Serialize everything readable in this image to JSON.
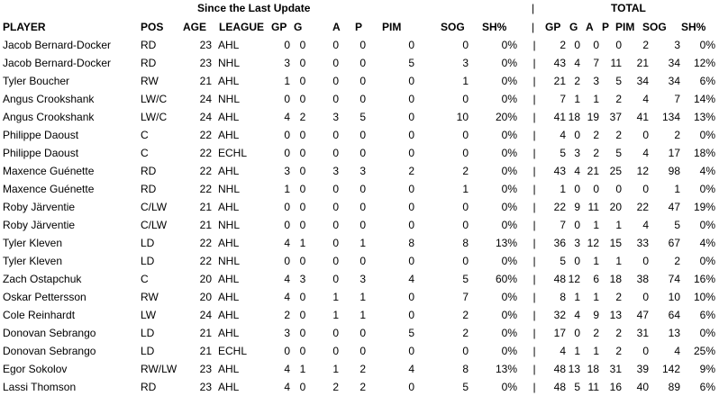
{
  "banners": {
    "since": "Since the Last Update",
    "sep": "|",
    "total": "TOTAL"
  },
  "headers": {
    "player": "PLAYER",
    "pos": "POS",
    "age": "AGE",
    "league": "LEAGUE",
    "s_gp": "GP",
    "s_g": "G",
    "s_a": "A",
    "s_p": "P",
    "s_pim": "PIM",
    "s_sog": "SOG",
    "s_shp": "SH%",
    "sep": "|",
    "t_gp": "GP",
    "t_g": "G",
    "t_a": "A",
    "t_p": "P",
    "t_pim": "PIM",
    "t_sog": "SOG",
    "t_shp": "SH%"
  },
  "rows": [
    {
      "player": "Jacob Bernard-Docker",
      "pos": "RD",
      "age": "23",
      "league": "AHL",
      "s_gp": "0",
      "s_g": "0",
      "s_a": "0",
      "s_p": "0",
      "s_pim": "0",
      "s_sog": "0",
      "s_shp": "0%",
      "sep": "|",
      "t_gp": "2",
      "t_g": "0",
      "t_a": "0",
      "t_p": "0",
      "t_pim": "2",
      "t_sog": "3",
      "t_shp": "0%"
    },
    {
      "player": "Jacob Bernard-Docker",
      "pos": "RD",
      "age": "23",
      "league": "NHL",
      "s_gp": "3",
      "s_g": "0",
      "s_a": "0",
      "s_p": "0",
      "s_pim": "5",
      "s_sog": "3",
      "s_shp": "0%",
      "sep": "|",
      "t_gp": "43",
      "t_g": "4",
      "t_a": "7",
      "t_p": "11",
      "t_pim": "21",
      "t_sog": "34",
      "t_shp": "12%"
    },
    {
      "player": "Tyler Boucher",
      "pos": "RW",
      "age": "21",
      "league": "AHL",
      "s_gp": "1",
      "s_g": "0",
      "s_a": "0",
      "s_p": "0",
      "s_pim": "0",
      "s_sog": "1",
      "s_shp": "0%",
      "sep": "|",
      "t_gp": "21",
      "t_g": "2",
      "t_a": "3",
      "t_p": "5",
      "t_pim": "34",
      "t_sog": "34",
      "t_shp": "6%"
    },
    {
      "player": "Angus Crookshank",
      "pos": "LW/C",
      "age": "24",
      "league": "NHL",
      "s_gp": "0",
      "s_g": "0",
      "s_a": "0",
      "s_p": "0",
      "s_pim": "0",
      "s_sog": "0",
      "s_shp": "0%",
      "sep": "|",
      "t_gp": "7",
      "t_g": "1",
      "t_a": "1",
      "t_p": "2",
      "t_pim": "4",
      "t_sog": "7",
      "t_shp": "14%"
    },
    {
      "player": "Angus Crookshank",
      "pos": "LW/C",
      "age": "24",
      "league": "AHL",
      "s_gp": "4",
      "s_g": "2",
      "s_a": "3",
      "s_p": "5",
      "s_pim": "0",
      "s_sog": "10",
      "s_shp": "20%",
      "sep": "|",
      "t_gp": "41",
      "t_g": "18",
      "t_a": "19",
      "t_p": "37",
      "t_pim": "41",
      "t_sog": "134",
      "t_shp": "13%"
    },
    {
      "player": "Philippe Daoust",
      "pos": "C",
      "age": "22",
      "league": "AHL",
      "s_gp": "0",
      "s_g": "0",
      "s_a": "0",
      "s_p": "0",
      "s_pim": "0",
      "s_sog": "0",
      "s_shp": "0%",
      "sep": "|",
      "t_gp": "4",
      "t_g": "0",
      "t_a": "2",
      "t_p": "2",
      "t_pim": "0",
      "t_sog": "2",
      "t_shp": "0%"
    },
    {
      "player": "Philippe Daoust",
      "pos": "C",
      "age": "22",
      "league": "ECHL",
      "s_gp": "0",
      "s_g": "0",
      "s_a": "0",
      "s_p": "0",
      "s_pim": "0",
      "s_sog": "0",
      "s_shp": "0%",
      "sep": "|",
      "t_gp": "5",
      "t_g": "3",
      "t_a": "2",
      "t_p": "5",
      "t_pim": "4",
      "t_sog": "17",
      "t_shp": "18%"
    },
    {
      "player": "Maxence Guénette",
      "pos": "RD",
      "age": "22",
      "league": "AHL",
      "s_gp": "3",
      "s_g": "0",
      "s_a": "3",
      "s_p": "3",
      "s_pim": "2",
      "s_sog": "2",
      "s_shp": "0%",
      "sep": "|",
      "t_gp": "43",
      "t_g": "4",
      "t_a": "21",
      "t_p": "25",
      "t_pim": "12",
      "t_sog": "98",
      "t_shp": "4%"
    },
    {
      "player": "Maxence Guénette",
      "pos": "RD",
      "age": "22",
      "league": "NHL",
      "s_gp": "1",
      "s_g": "0",
      "s_a": "0",
      "s_p": "0",
      "s_pim": "0",
      "s_sog": "1",
      "s_shp": "0%",
      "sep": "|",
      "t_gp": "1",
      "t_g": "0",
      "t_a": "0",
      "t_p": "0",
      "t_pim": "0",
      "t_sog": "1",
      "t_shp": "0%"
    },
    {
      "player": "Roby Järventie",
      "pos": "C/LW",
      "age": "21",
      "league": "AHL",
      "s_gp": "0",
      "s_g": "0",
      "s_a": "0",
      "s_p": "0",
      "s_pim": "0",
      "s_sog": "0",
      "s_shp": "0%",
      "sep": "|",
      "t_gp": "22",
      "t_g": "9",
      "t_a": "11",
      "t_p": "20",
      "t_pim": "22",
      "t_sog": "47",
      "t_shp": "19%"
    },
    {
      "player": "Roby Järventie",
      "pos": "C/LW",
      "age": "21",
      "league": "NHL",
      "s_gp": "0",
      "s_g": "0",
      "s_a": "0",
      "s_p": "0",
      "s_pim": "0",
      "s_sog": "0",
      "s_shp": "0%",
      "sep": "|",
      "t_gp": "7",
      "t_g": "0",
      "t_a": "1",
      "t_p": "1",
      "t_pim": "4",
      "t_sog": "5",
      "t_shp": "0%"
    },
    {
      "player": "Tyler Kleven",
      "pos": "LD",
      "age": "22",
      "league": "AHL",
      "s_gp": "4",
      "s_g": "1",
      "s_a": "0",
      "s_p": "1",
      "s_pim": "8",
      "s_sog": "8",
      "s_shp": "13%",
      "sep": "|",
      "t_gp": "36",
      "t_g": "3",
      "t_a": "12",
      "t_p": "15",
      "t_pim": "33",
      "t_sog": "67",
      "t_shp": "4%"
    },
    {
      "player": "Tyler Kleven",
      "pos": "LD",
      "age": "22",
      "league": "NHL",
      "s_gp": "0",
      "s_g": "0",
      "s_a": "0",
      "s_p": "0",
      "s_pim": "0",
      "s_sog": "0",
      "s_shp": "0%",
      "sep": "|",
      "t_gp": "5",
      "t_g": "0",
      "t_a": "1",
      "t_p": "1",
      "t_pim": "0",
      "t_sog": "2",
      "t_shp": "0%"
    },
    {
      "player": "Zach Ostapchuk",
      "pos": "C",
      "age": "20",
      "league": "AHL",
      "s_gp": "4",
      "s_g": "3",
      "s_a": "0",
      "s_p": "3",
      "s_pim": "4",
      "s_sog": "5",
      "s_shp": "60%",
      "sep": "|",
      "t_gp": "48",
      "t_g": "12",
      "t_a": "6",
      "t_p": "18",
      "t_pim": "38",
      "t_sog": "74",
      "t_shp": "16%"
    },
    {
      "player": "Oskar Pettersson",
      "pos": "RW",
      "age": "20",
      "league": "AHL",
      "s_gp": "4",
      "s_g": "0",
      "s_a": "1",
      "s_p": "1",
      "s_pim": "0",
      "s_sog": "7",
      "s_shp": "0%",
      "sep": "|",
      "t_gp": "8",
      "t_g": "1",
      "t_a": "1",
      "t_p": "2",
      "t_pim": "0",
      "t_sog": "10",
      "t_shp": "10%"
    },
    {
      "player": "Cole Reinhardt",
      "pos": "LW",
      "age": "24",
      "league": "AHL",
      "s_gp": "2",
      "s_g": "0",
      "s_a": "1",
      "s_p": "1",
      "s_pim": "0",
      "s_sog": "2",
      "s_shp": "0%",
      "sep": "|",
      "t_gp": "32",
      "t_g": "4",
      "t_a": "9",
      "t_p": "13",
      "t_pim": "47",
      "t_sog": "64",
      "t_shp": "6%"
    },
    {
      "player": "Donovan Sebrango",
      "pos": "LD",
      "age": "21",
      "league": "AHL",
      "s_gp": "3",
      "s_g": "0",
      "s_a": "0",
      "s_p": "0",
      "s_pim": "5",
      "s_sog": "2",
      "s_shp": "0%",
      "sep": "|",
      "t_gp": "17",
      "t_g": "0",
      "t_a": "2",
      "t_p": "2",
      "t_pim": "31",
      "t_sog": "13",
      "t_shp": "0%"
    },
    {
      "player": "Donovan Sebrango",
      "pos": "LD",
      "age": "21",
      "league": "ECHL",
      "s_gp": "0",
      "s_g": "0",
      "s_a": "0",
      "s_p": "0",
      "s_pim": "0",
      "s_sog": "0",
      "s_shp": "0%",
      "sep": "|",
      "t_gp": "4",
      "t_g": "1",
      "t_a": "1",
      "t_p": "2",
      "t_pim": "0",
      "t_sog": "4",
      "t_shp": "25%"
    },
    {
      "player": "Egor Sokolov",
      "pos": "RW/LW",
      "age": "23",
      "league": "AHL",
      "s_gp": "4",
      "s_g": "1",
      "s_a": "1",
      "s_p": "2",
      "s_pim": "4",
      "s_sog": "8",
      "s_shp": "13%",
      "sep": "|",
      "t_gp": "48",
      "t_g": "13",
      "t_a": "18",
      "t_p": "31",
      "t_pim": "39",
      "t_sog": "142",
      "t_shp": "9%"
    },
    {
      "player": "Lassi Thomson",
      "pos": "RD",
      "age": "23",
      "league": "AHL",
      "s_gp": "4",
      "s_g": "0",
      "s_a": "2",
      "s_p": "2",
      "s_pim": "0",
      "s_sog": "5",
      "s_shp": "0%",
      "sep": "|",
      "t_gp": "48",
      "t_g": "5",
      "t_a": "11",
      "t_p": "16",
      "t_pim": "40",
      "t_sog": "89",
      "t_shp": "6%"
    }
  ]
}
